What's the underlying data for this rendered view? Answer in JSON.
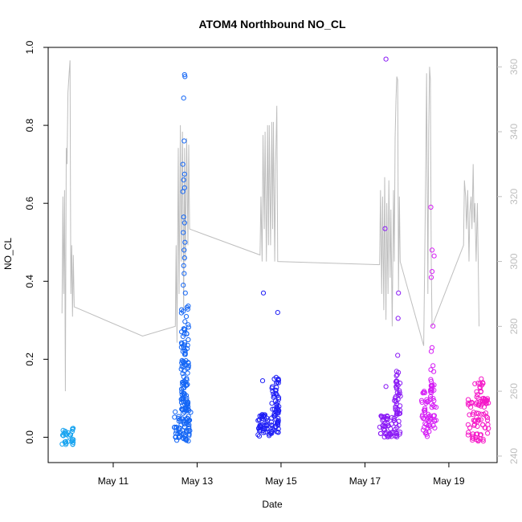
{
  "chart_data": {
    "type": "scatter",
    "title": "ATOM4 Northbound NO_CL",
    "xlabel": "Date",
    "ylabel": "NO_CL",
    "x_ticks": [
      "May 11",
      "May 13",
      "May 15",
      "May 17",
      "May 19"
    ],
    "x_tick_days": [
      11,
      13,
      15,
      17,
      19
    ],
    "xlim_days": [
      9.45,
      20.15
    ],
    "ylim": [
      -0.065,
      1.0
    ],
    "y_ticks": [
      "0.0",
      "0.2",
      "0.4",
      "0.6",
      "0.8",
      "1.0"
    ],
    "y2_ticks": [
      "240",
      "260",
      "280",
      "300",
      "320",
      "340",
      "360"
    ],
    "y2lim": [
      238,
      366
    ],
    "y2_color": "#bebebe",
    "grid": false,
    "secondary_line": {
      "color": "#bebebe",
      "points": [
        [
          9.78,
          284
        ],
        [
          9.8,
          320
        ],
        [
          9.82,
          290
        ],
        [
          9.84,
          322
        ],
        [
          9.86,
          260
        ],
        [
          9.88,
          335
        ],
        [
          9.9,
          330
        ],
        [
          9.92,
          352
        ],
        [
          9.95,
          358
        ],
        [
          9.97,
          362
        ],
        [
          9.99,
          290
        ],
        [
          10.01,
          305
        ],
        [
          10.03,
          283
        ],
        [
          10.05,
          302
        ],
        [
          10.07,
          286
        ],
        [
          11.7,
          277
        ],
        [
          12.48,
          280
        ],
        [
          12.5,
          305
        ],
        [
          12.52,
          275
        ],
        [
          12.55,
          335
        ],
        [
          12.57,
          290
        ],
        [
          12.6,
          342
        ],
        [
          12.62,
          300
        ],
        [
          12.65,
          340
        ],
        [
          12.68,
          285
        ],
        [
          12.7,
          335
        ],
        [
          12.72,
          300
        ],
        [
          12.75,
          338
        ],
        [
          12.78,
          305
        ],
        [
          12.8,
          336
        ],
        [
          12.82,
          310
        ],
        [
          14.5,
          302
        ],
        [
          14.52,
          320
        ],
        [
          14.55,
          300
        ],
        [
          14.57,
          339
        ],
        [
          14.6,
          310
        ],
        [
          14.62,
          340
        ],
        [
          14.65,
          300
        ],
        [
          14.68,
          342
        ],
        [
          14.7,
          305
        ],
        [
          14.72,
          342
        ],
        [
          14.75,
          305
        ],
        [
          14.78,
          343
        ],
        [
          14.8,
          310
        ],
        [
          14.82,
          343
        ],
        [
          14.85,
          300
        ],
        [
          14.87,
          330
        ],
        [
          14.9,
          348
        ],
        [
          14.92,
          300
        ],
        [
          17.35,
          299
        ],
        [
          17.37,
          322
        ],
        [
          17.4,
          290
        ],
        [
          17.42,
          320
        ],
        [
          17.45,
          285
        ],
        [
          17.47,
          326
        ],
        [
          17.5,
          282
        ],
        [
          17.52,
          318
        ],
        [
          17.55,
          290
        ],
        [
          17.57,
          325
        ],
        [
          17.6,
          295
        ],
        [
          17.62,
          316
        ],
        [
          17.65,
          280
        ],
        [
          17.68,
          322
        ],
        [
          17.7,
          300
        ],
        [
          17.72,
          338
        ],
        [
          17.74,
          350
        ],
        [
          17.76,
          357
        ],
        [
          17.78,
          356
        ],
        [
          17.8,
          291
        ],
        [
          17.82,
          320
        ],
        [
          17.84,
          300
        ],
        [
          18.4,
          274
        ],
        [
          18.42,
          295
        ],
        [
          18.45,
          330
        ],
        [
          18.47,
          358
        ],
        [
          18.5,
          290
        ],
        [
          18.52,
          340
        ],
        [
          18.54,
          360
        ],
        [
          18.56,
          356
        ],
        [
          18.58,
          300
        ],
        [
          18.6,
          280
        ],
        [
          19.35,
          305
        ],
        [
          19.37,
          325
        ],
        [
          19.4,
          320
        ],
        [
          19.42,
          310
        ],
        [
          19.45,
          322
        ],
        [
          19.48,
          300
        ],
        [
          19.5,
          315
        ],
        [
          19.53,
          320
        ],
        [
          19.55,
          310
        ],
        [
          19.58,
          330
        ],
        [
          19.6,
          312
        ],
        [
          19.62,
          318
        ],
        [
          19.65,
          300
        ],
        [
          19.68,
          318
        ],
        [
          19.7,
          300
        ],
        [
          19.72,
          280
        ]
      ]
    },
    "clusters": [
      {
        "color": "#19a4f0",
        "x_range": [
          9.78,
          10.05
        ],
        "y_range": [
          -0.02,
          0.025
        ],
        "n": 30,
        "outliers": []
      },
      {
        "color": "#1466f5",
        "x_range": [
          12.45,
          12.85
        ],
        "y_range": [
          -0.01,
          0.07
        ],
        "n": 70,
        "tail": {
          "y_range": [
            0.07,
            0.34
          ],
          "n": 110,
          "x_range": [
            12.62,
            12.8
          ]
        },
        "outliers": [
          [
            12.7,
            0.93
          ],
          [
            12.71,
            0.925
          ],
          [
            12.68,
            0.87
          ],
          [
            12.69,
            0.76
          ],
          [
            12.66,
            0.7
          ],
          [
            12.7,
            0.675
          ],
          [
            12.68,
            0.66
          ],
          [
            12.7,
            0.64
          ],
          [
            12.66,
            0.63
          ],
          [
            12.68,
            0.565
          ],
          [
            12.7,
            0.55
          ],
          [
            12.67,
            0.525
          ],
          [
            12.71,
            0.5
          ],
          [
            12.69,
            0.48
          ],
          [
            12.7,
            0.46
          ],
          [
            12.68,
            0.44
          ],
          [
            12.69,
            0.42
          ],
          [
            12.67,
            0.39
          ],
          [
            12.72,
            0.37
          ]
        ]
      },
      {
        "color": "#1e1ef5",
        "x_range": [
          14.45,
          14.95
        ],
        "y_range": [
          0.0,
          0.06
        ],
        "n": 70,
        "tail": {
          "y_range": [
            0.06,
            0.16
          ],
          "n": 40,
          "x_range": [
            14.78,
            14.95
          ]
        },
        "outliers": [
          [
            14.58,
            0.37
          ],
          [
            14.92,
            0.32
          ],
          [
            14.56,
            0.145
          ]
        ]
      },
      {
        "color": "#8a19f5",
        "x_range": [
          17.35,
          17.85
        ],
        "y_range": [
          0.0,
          0.06
        ],
        "n": 60,
        "tail": {
          "y_range": [
            0.06,
            0.17
          ],
          "n": 40,
          "x_range": [
            17.7,
            17.85
          ]
        },
        "outliers": [
          [
            17.5,
            0.97
          ],
          [
            17.48,
            0.535
          ],
          [
            17.8,
            0.37
          ],
          [
            17.79,
            0.305
          ],
          [
            17.78,
            0.21
          ],
          [
            17.5,
            0.13
          ]
        ]
      },
      {
        "color": "#d51ef5",
        "x_range": [
          18.35,
          18.7
        ],
        "y_range": [
          0.0,
          0.12
        ],
        "n": 60,
        "tail": {
          "y_range": [
            0.12,
            0.2
          ],
          "n": 15,
          "x_range": [
            18.55,
            18.65
          ]
        },
        "outliers": [
          [
            18.57,
            0.59
          ],
          [
            18.6,
            0.48
          ],
          [
            18.65,
            0.465
          ],
          [
            18.6,
            0.425
          ],
          [
            18.58,
            0.41
          ],
          [
            18.62,
            0.285
          ],
          [
            18.6,
            0.23
          ],
          [
            18.58,
            0.22
          ]
        ]
      },
      {
        "color": "#f519c8",
        "x_range": [
          19.45,
          19.95
        ],
        "y_range": [
          -0.01,
          0.1
        ],
        "n": 80,
        "tail": {
          "y_range": [
            0.1,
            0.15
          ],
          "n": 15,
          "x_range": [
            19.6,
            19.85
          ]
        },
        "outliers": []
      }
    ]
  }
}
